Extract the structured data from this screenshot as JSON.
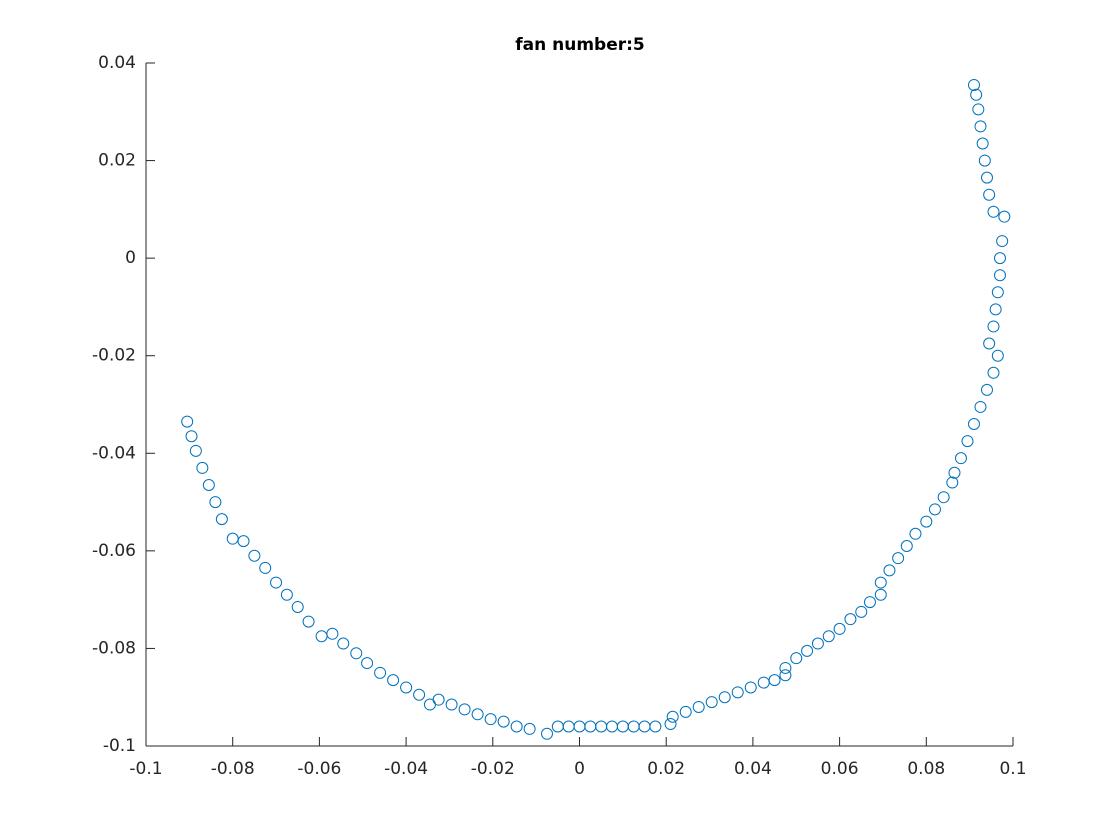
{
  "chart_data": {
    "type": "scatter",
    "title": "fan number:5",
    "color": "#0072bd",
    "xlim": [
      -0.1,
      0.1
    ],
    "ylim": [
      -0.1,
      0.04
    ],
    "xticks": [
      -0.1,
      -0.08,
      -0.06,
      -0.04,
      -0.02,
      0,
      0.02,
      0.04,
      0.06,
      0.08,
      0.1
    ],
    "yticks": [
      -0.1,
      -0.08,
      -0.06,
      -0.04,
      -0.02,
      0,
      0.02,
      0.04
    ],
    "x": [
      -0.0905,
      -0.0895,
      -0.0885,
      -0.087,
      -0.0855,
      -0.084,
      -0.0825,
      -0.08,
      -0.0775,
      -0.075,
      -0.0725,
      -0.07,
      -0.0675,
      -0.065,
      -0.0625,
      -0.0595,
      -0.057,
      -0.0545,
      -0.0515,
      -0.049,
      -0.046,
      -0.043,
      -0.04,
      -0.037,
      -0.0345,
      -0.0325,
      -0.0295,
      -0.0265,
      -0.0235,
      -0.0205,
      -0.0175,
      -0.0145,
      -0.0115,
      -0.0075,
      -0.005,
      -0.0025,
      0,
      0.0025,
      0.005,
      0.0075,
      0.01,
      0.0125,
      0.015,
      0.0175,
      0.021,
      0.0215,
      0.0245,
      0.0275,
      0.0305,
      0.0335,
      0.0365,
      0.0395,
      0.0425,
      0.045,
      0.0475,
      0.0475,
      0.05,
      0.0525,
      0.055,
      0.0575,
      0.06,
      0.0625,
      0.065,
      0.067,
      0.0695,
      0.0695,
      0.0715,
      0.0735,
      0.0755,
      0.0775,
      0.08,
      0.082,
      0.084,
      0.086,
      0.0865,
      0.088,
      0.0895,
      0.091,
      0.0925,
      0.094,
      0.0955,
      0.0965,
      0.0945,
      0.0955,
      0.096,
      0.0965,
      0.097,
      0.097,
      0.0975,
      0.098,
      0.0955,
      0.0945,
      0.094,
      0.0935,
      0.093,
      0.0925,
      0.092,
      0.0915,
      0.091
    ],
    "values": [
      -0.0335,
      -0.0365,
      -0.0395,
      -0.043,
      -0.0465,
      -0.05,
      -0.0535,
      -0.0575,
      -0.058,
      -0.061,
      -0.0635,
      -0.0665,
      -0.069,
      -0.0715,
      -0.0745,
      -0.0775,
      -0.077,
      -0.079,
      -0.081,
      -0.083,
      -0.085,
      -0.0865,
      -0.088,
      -0.0895,
      -0.0915,
      -0.0905,
      -0.0915,
      -0.0925,
      -0.0935,
      -0.0945,
      -0.095,
      -0.096,
      -0.0965,
      -0.0975,
      -0.096,
      -0.096,
      -0.096,
      -0.096,
      -0.096,
      -0.096,
      -0.096,
      -0.096,
      -0.096,
      -0.096,
      -0.0955,
      -0.094,
      -0.093,
      -0.092,
      -0.091,
      -0.09,
      -0.089,
      -0.088,
      -0.087,
      -0.0865,
      -0.0855,
      -0.084,
      -0.082,
      -0.0805,
      -0.079,
      -0.0775,
      -0.076,
      -0.074,
      -0.0725,
      -0.0705,
      -0.069,
      -0.0665,
      -0.064,
      -0.0615,
      -0.059,
      -0.0565,
      -0.054,
      -0.0515,
      -0.049,
      -0.046,
      -0.044,
      -0.041,
      -0.0375,
      -0.034,
      -0.0305,
      -0.027,
      -0.0235,
      -0.02,
      -0.0175,
      -0.014,
      -0.0105,
      -0.007,
      -0.0035,
      0,
      0.0035,
      0.0085,
      0.0095,
      0.013,
      0.0165,
      0.02,
      0.0235,
      0.027,
      0.0305,
      0.0335,
      0.0355
    ]
  }
}
